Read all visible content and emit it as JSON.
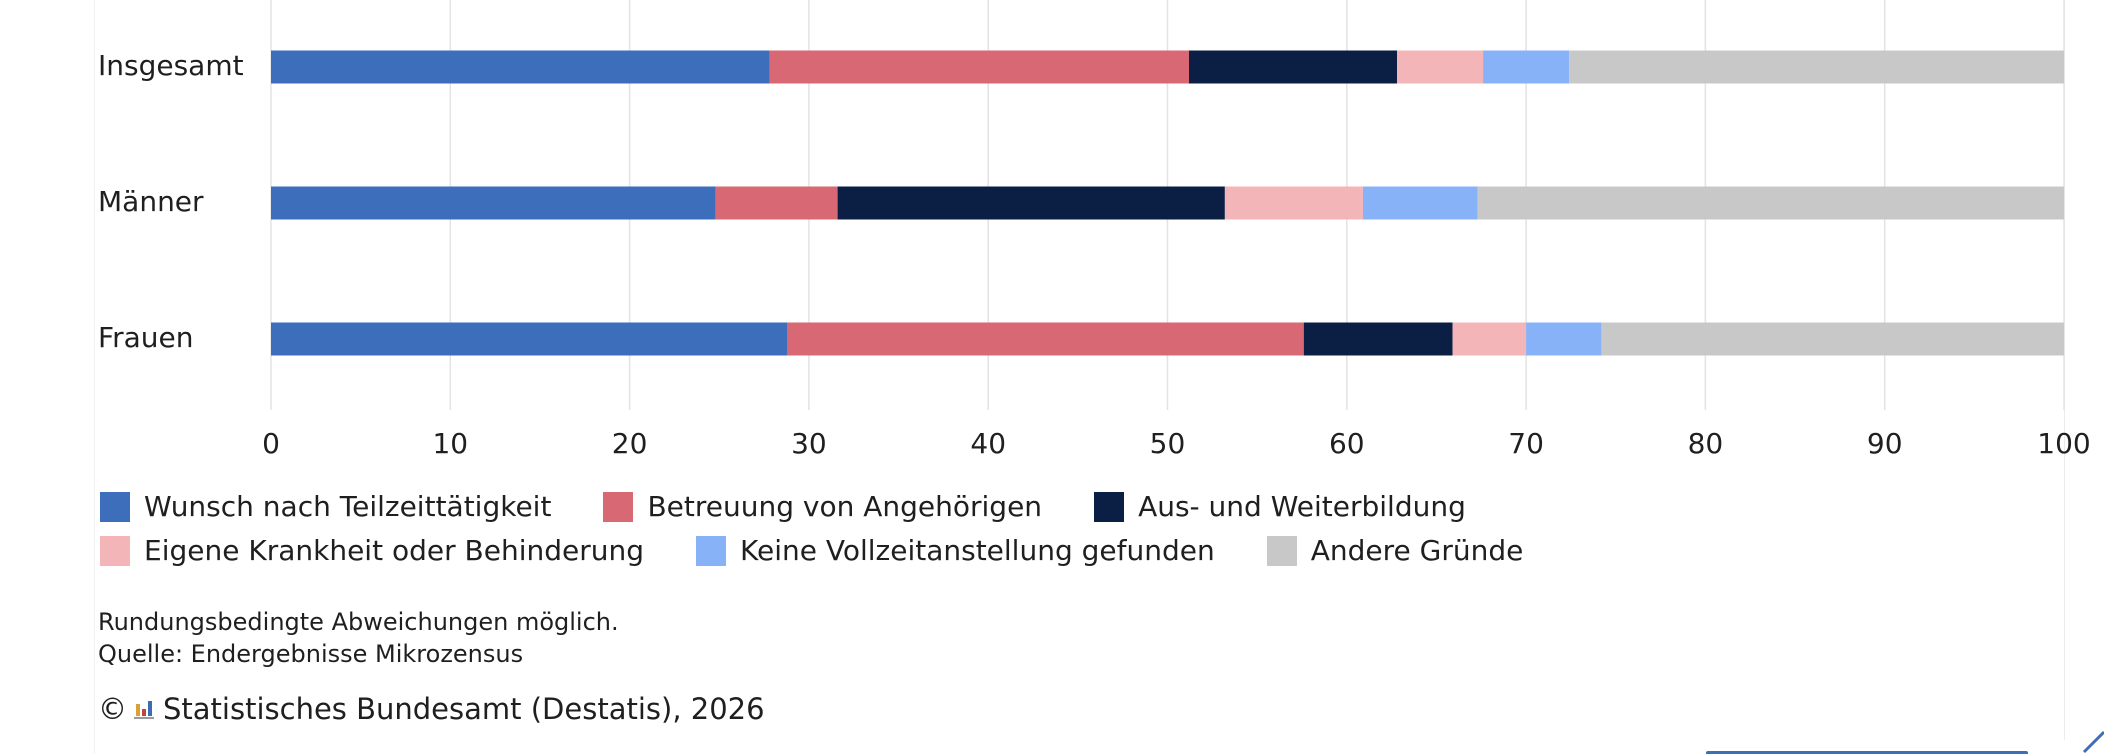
{
  "chart_data": {
    "type": "bar",
    "orientation": "horizontal",
    "stacked": true,
    "categories": [
      "Insgesamt",
      "Männer",
      "Frauen"
    ],
    "series": [
      {
        "name": "Wunsch nach Teilzeittätigkeit",
        "color": "#3c6ebc",
        "values": [
          27.8,
          24.8,
          28.8
        ]
      },
      {
        "name": "Betreuung von Angehörigen",
        "color": "#d86873",
        "values": [
          23.4,
          6.8,
          28.8
        ]
      },
      {
        "name": "Aus- und Weiterbildung",
        "color": "#0b1f45",
        "values": [
          11.6,
          21.6,
          8.3
        ]
      },
      {
        "name": "Eigene Krankheit oder Behinderung",
        "color": "#f4b5b9",
        "values": [
          4.8,
          7.7,
          4.1
        ]
      },
      {
        "name": "Keine Vollzeitanstellung gefunden",
        "color": "#88b2f7",
        "values": [
          4.8,
          6.4,
          4.2
        ]
      },
      {
        "name": "Andere Gründe",
        "color": "#c8c8c8",
        "values": [
          27.6,
          32.7,
          25.8
        ]
      }
    ],
    "xlim": [
      0,
      100
    ],
    "xticks": [
      0,
      10,
      20,
      30,
      40,
      50,
      60,
      70,
      80,
      90,
      100
    ],
    "grid": true,
    "legend_position": "bottom",
    "title": "",
    "xlabel": "",
    "ylabel": ""
  },
  "notes": {
    "line1": "Rundungsbedingte Abweichungen möglich.",
    "line2": "Quelle: Endergebnisse Mikrozensus"
  },
  "footer": {
    "copyright_symbol": "©",
    "logo_icon": "destatis-bar-logo-icon",
    "text": "Statistisches Bundesamt (Destatis), 2026"
  }
}
